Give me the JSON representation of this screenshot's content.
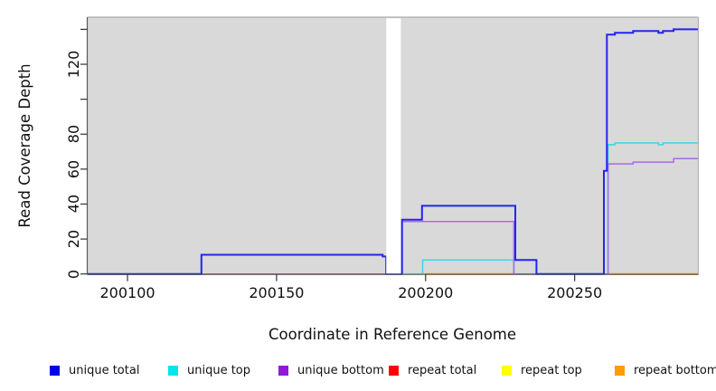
{
  "chart_data": {
    "type": "line",
    "style": "step",
    "xlabel": "Coordinate in Reference Genome",
    "ylabel": "Read Coverage Depth",
    "plot_bg_color": "#d9d9d9",
    "x_axis": {
      "min": 200086.5,
      "max": 200291.5,
      "ticks": [
        {
          "value": 200100,
          "label": "200100"
        },
        {
          "value": 200150,
          "label": "200150"
        },
        {
          "value": 200200,
          "label": "200200"
        },
        {
          "value": 200250,
          "label": "200250"
        }
      ]
    },
    "y_axis": {
      "min": 0,
      "max": 147,
      "ticks": [
        {
          "value": 0,
          "label": "0"
        },
        {
          "value": 20,
          "label": "20"
        },
        {
          "value": 40,
          "label": "40"
        },
        {
          "value": 60,
          "label": "60"
        },
        {
          "value": 80,
          "label": "80"
        },
        {
          "value": 100,
          "label": ""
        },
        {
          "value": 120,
          "label": "120"
        },
        {
          "value": 140,
          "label": ""
        }
      ]
    },
    "masked_region": {
      "x_start": 200186.8,
      "x_end": 200191.7,
      "color": "#ffffff"
    },
    "series": [
      {
        "name": "unique top",
        "line_color": "#40d8e8",
        "line_width": 1.6,
        "segments": [
          [
            [
              200192.1,
              0
            ],
            [
              200199,
              0
            ],
            [
              200199,
              8
            ],
            [
              200229.6,
              8
            ],
            [
              200229.6,
              0
            ],
            [
              200261.2,
              0
            ],
            [
              200261.2,
              74
            ],
            [
              200263.5,
              74
            ],
            [
              200263.5,
              75
            ],
            [
              200278.1,
              75
            ],
            [
              200278.1,
              74
            ],
            [
              200279.6,
              74
            ],
            [
              200279.6,
              75
            ],
            [
              200291.5,
              75
            ]
          ]
        ]
      },
      {
        "name": "repeat total",
        "line_color": "#dd5468",
        "line_width": 1.5,
        "segments": [
          [
            [
              200124.8,
              0
            ],
            [
              200237.2,
              0
            ]
          ]
        ]
      },
      {
        "name": "repeat top",
        "line_color": "#a8dc82",
        "line_width": 1.5,
        "segments": [
          [
            [
              200186.8,
              0
            ],
            [
              200199.8,
              0
            ]
          ]
        ]
      },
      {
        "name": "repeat bottom",
        "line_color": "#ff9718",
        "line_width": 1.8,
        "segments": [
          [
            [
              200199.8,
              0
            ],
            [
              200229.8,
              0
            ]
          ],
          [
            [
              200261.4,
              0
            ],
            [
              200291.5,
              0
            ]
          ]
        ]
      },
      {
        "name": "unique bottom",
        "line_color": "#a86ce0",
        "line_width": 1.5,
        "segments": [
          [
            [
              200086.5,
              0
            ],
            [
              200192.1,
              0
            ],
            [
              200192.1,
              30
            ],
            [
              200229.6,
              30
            ],
            [
              200229.6,
              0
            ],
            [
              200261.2,
              0
            ],
            [
              200261.2,
              63
            ],
            [
              200269.6,
              63
            ],
            [
              200269.6,
              64
            ],
            [
              200283.2,
              64
            ],
            [
              200283.2,
              66
            ],
            [
              200291.5,
              66
            ]
          ]
        ]
      },
      {
        "name": "unique total",
        "line_color": "#2424f0",
        "line_width": 2,
        "segments": [
          [
            [
              200086.5,
              0
            ],
            [
              200124.8,
              0
            ],
            [
              200124.8,
              11
            ],
            [
              200185.6,
              11
            ],
            [
              200185.6,
              10
            ],
            [
              200186.8,
              10
            ],
            [
              200186.8,
              0
            ],
            [
              200192.1,
              0
            ],
            [
              200192.1,
              31
            ],
            [
              200198.8,
              31
            ],
            [
              200198.8,
              39
            ],
            [
              200230.1,
              39
            ],
            [
              200230.1,
              8
            ],
            [
              200237.2,
              8
            ],
            [
              200237.2,
              0
            ],
            [
              200259.8,
              0
            ],
            [
              200259.8,
              59
            ],
            [
              200260.8,
              59
            ],
            [
              200260.8,
              137
            ],
            [
              200263.5,
              137
            ],
            [
              200263.5,
              138
            ],
            [
              200269.6,
              138
            ],
            [
              200269.6,
              139
            ],
            [
              200278.1,
              139
            ],
            [
              200278.1,
              138
            ],
            [
              200279.6,
              138
            ],
            [
              200279.6,
              139
            ],
            [
              200283.2,
              139
            ],
            [
              200283.2,
              140
            ],
            [
              200291.5,
              140
            ]
          ]
        ]
      }
    ]
  },
  "legend": {
    "items": [
      {
        "label": "unique total",
        "color": "#0000e8"
      },
      {
        "label": "unique top",
        "color": "#00e5ee"
      },
      {
        "label": "unique bottom",
        "color": "#9318d6"
      },
      {
        "label": "repeat total",
        "color": "#ff0000"
      },
      {
        "label": "repeat top",
        "color": "#ffff00"
      },
      {
        "label": "repeat bottom",
        "color": "#ff9c00"
      }
    ]
  }
}
